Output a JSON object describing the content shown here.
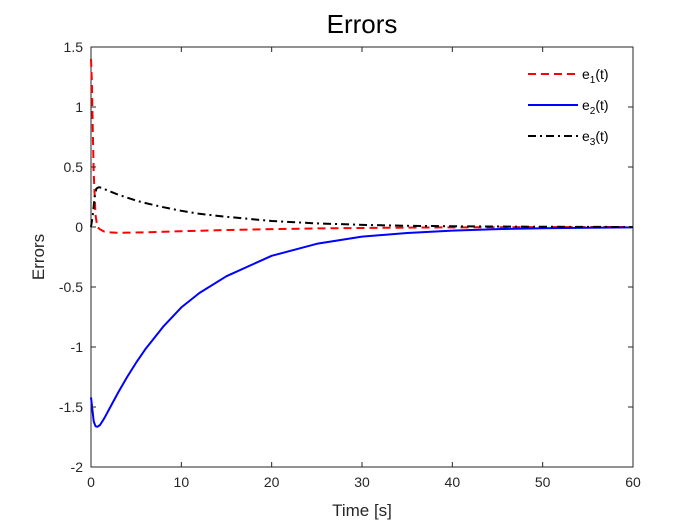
{
  "chart_data": {
    "type": "line",
    "title": "Errors",
    "xlabel": "Time [s]",
    "ylabel": "Errors",
    "xlim": [
      0,
      60
    ],
    "ylim": [
      -2,
      1.5
    ],
    "xticks": [
      0,
      10,
      20,
      30,
      40,
      50,
      60
    ],
    "yticks": [
      -2,
      -1.5,
      -1,
      -0.5,
      0,
      0.5,
      1,
      1.5
    ],
    "xtick_labels": [
      "0",
      "10",
      "20",
      "30",
      "40",
      "50",
      "60"
    ],
    "ytick_labels": [
      "-2",
      "-1.5",
      "-1",
      "-0.5",
      "0",
      "0.5",
      "1",
      "1.5"
    ],
    "grid": false,
    "legend_position": "top-right",
    "series": [
      {
        "name": "e1(t)",
        "label_base": "e",
        "label_sub": "1",
        "label_suffix": "(t)",
        "color": "#ff0000",
        "style": "dashed",
        "x": [
          0,
          0.1,
          0.2,
          0.3,
          0.5,
          0.7,
          1,
          1.5,
          2,
          3,
          4,
          6,
          8,
          10,
          15,
          20,
          25,
          30,
          35,
          40,
          45,
          50,
          55,
          60
        ],
        "y": [
          1.4,
          1.2,
          0.8,
          0.45,
          0.1,
          0.0,
          -0.02,
          -0.04,
          -0.045,
          -0.048,
          -0.047,
          -0.044,
          -0.04,
          -0.035,
          -0.025,
          -0.018,
          -0.012,
          -0.008,
          -0.005,
          -0.003,
          -0.002,
          -0.001,
          -0.0005,
          0
        ]
      },
      {
        "name": "e2(t)",
        "label_base": "e",
        "label_sub": "2",
        "label_suffix": "(t)",
        "color": "#0000ff",
        "style": "solid",
        "x": [
          0,
          0.3,
          0.5,
          0.7,
          1,
          1.5,
          2,
          3,
          4,
          5,
          6,
          8,
          10,
          12,
          15,
          20,
          25,
          30,
          35,
          40,
          45,
          50,
          55,
          60
        ],
        "y": [
          -1.42,
          -1.62,
          -1.66,
          -1.665,
          -1.65,
          -1.59,
          -1.52,
          -1.38,
          -1.25,
          -1.13,
          -1.02,
          -0.83,
          -0.67,
          -0.55,
          -0.41,
          -0.24,
          -0.14,
          -0.08,
          -0.05,
          -0.03,
          -0.018,
          -0.01,
          -0.006,
          -0.003
        ]
      },
      {
        "name": "e3(t)",
        "label_base": "e",
        "label_sub": "3",
        "label_suffix": "(t)",
        "color": "#000000",
        "style": "dashdot",
        "x": [
          0,
          0.2,
          0.4,
          0.6,
          0.8,
          1,
          2,
          3,
          4,
          5,
          6,
          8,
          10,
          12,
          15,
          20,
          25,
          30,
          35,
          40,
          45,
          50,
          55,
          60
        ],
        "y": [
          0,
          0.1,
          0.25,
          0.32,
          0.33,
          0.33,
          0.3,
          0.27,
          0.245,
          0.22,
          0.2,
          0.165,
          0.135,
          0.11,
          0.085,
          0.05,
          0.03,
          0.018,
          0.01,
          0.006,
          0.004,
          0.002,
          0.001,
          0
        ]
      }
    ]
  }
}
